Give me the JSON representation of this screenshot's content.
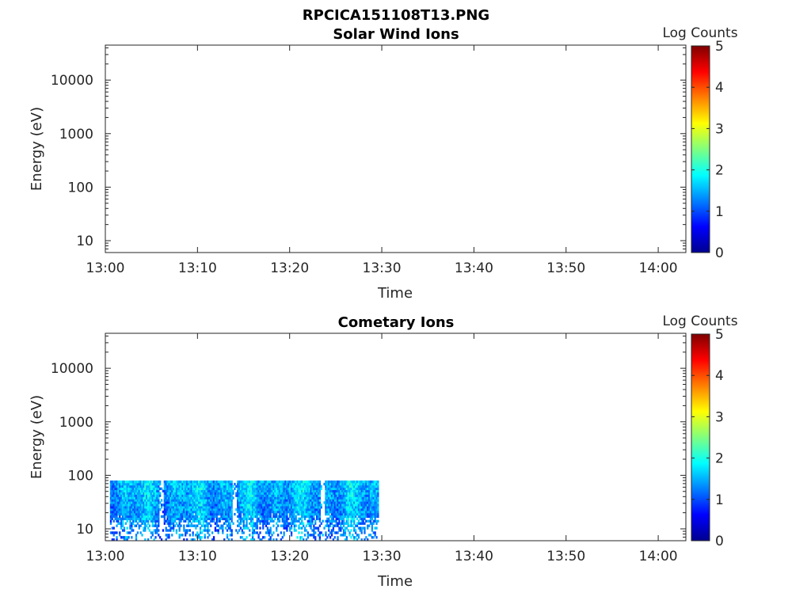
{
  "figure_title": "RPCICA151108T13.PNG",
  "chart_data": [
    {
      "type": "heatmap",
      "title": "Solar Wind Ions",
      "xlabel": "Time",
      "ylabel": "Energy (eV)",
      "y_scale": "log",
      "xlim": [
        "13:00",
        "14:03"
      ],
      "ylim": [
        6,
        45000
      ],
      "x_ticks": [
        "13:00",
        "13:10",
        "13:20",
        "13:30",
        "13:40",
        "13:50",
        "14:00"
      ],
      "y_ticks": [
        "10",
        "100",
        "1000",
        "10000"
      ],
      "colorbar": {
        "label": "Log Counts",
        "min": 0,
        "max": 5,
        "ticks": [
          "0",
          "1",
          "2",
          "3",
          "4",
          "5"
        ],
        "colormap": "jet"
      },
      "data_coverage": null,
      "grid": false
    },
    {
      "type": "heatmap",
      "title": "Cometary Ions",
      "xlabel": "Time",
      "ylabel": "Energy (eV)",
      "y_scale": "log",
      "xlim": [
        "13:00",
        "14:03"
      ],
      "ylim": [
        6,
        45000
      ],
      "x_ticks": [
        "13:00",
        "13:10",
        "13:20",
        "13:30",
        "13:40",
        "13:50",
        "14:00"
      ],
      "y_ticks": [
        "10",
        "100",
        "1000",
        "10000"
      ],
      "colorbar": {
        "label": "Log Counts",
        "min": 0,
        "max": 5,
        "ticks": [
          "0",
          "1",
          "2",
          "3",
          "4",
          "5"
        ],
        "colormap": "jet"
      },
      "data_coverage": {
        "time_range": [
          "13:00:30",
          "13:29:40"
        ],
        "energy_range": [
          6,
          80
        ],
        "typical_log_counts": [
          0.5,
          2.3
        ],
        "gap_times": [
          "13:06:00",
          "13:14:00",
          "13:23:30"
        ]
      },
      "grid": false
    }
  ]
}
